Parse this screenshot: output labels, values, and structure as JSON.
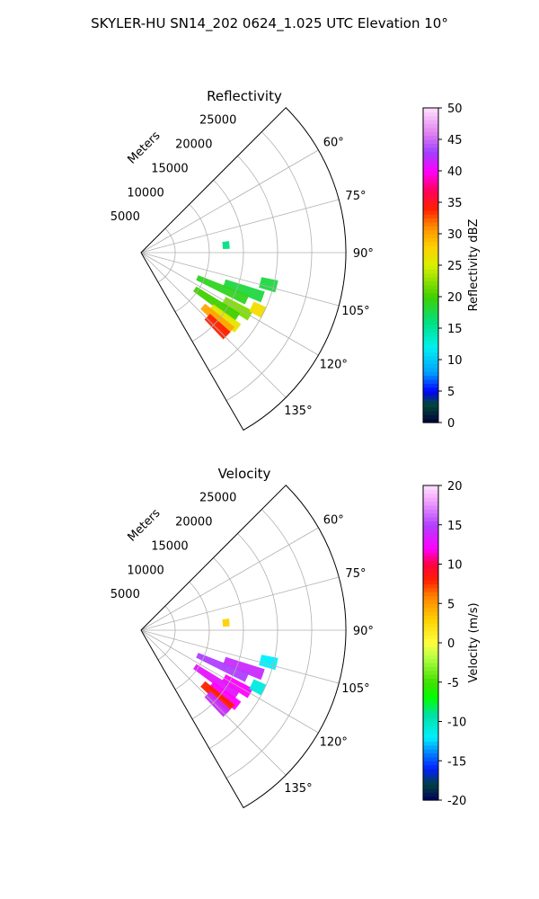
{
  "figure": {
    "suptitle": "SKYLER-HU  SN14_202  0624_1.025 UTC Elevation 10°"
  },
  "chart_data": [
    {
      "type": "polar-sector",
      "title": "Reflectivity",
      "radial_label": "Meters",
      "radial_ticks": [
        "5000",
        "10000",
        "15000",
        "20000",
        "25000"
      ],
      "angle_ticks": [
        "60°",
        "75°",
        "90°",
        "105°",
        "120°",
        "135°"
      ],
      "grid": true,
      "colorbar": {
        "label": "Reflectivity dBZ",
        "min": 0,
        "max": 50,
        "ticks": [
          "0",
          "5",
          "10",
          "15",
          "20",
          "25",
          "30",
          "35",
          "40",
          "45",
          "50"
        ]
      },
      "echo_cells": [
        {
          "az": 110,
          "r_min": 13000,
          "r_max": 19000,
          "value": 18
        },
        {
          "az": 114,
          "r_min": 9000,
          "r_max": 17000,
          "value": 19
        },
        {
          "az": 120,
          "r_min": 14000,
          "r_max": 18500,
          "value": 22
        },
        {
          "az": 124,
          "r_min": 9500,
          "r_max": 17000,
          "value": 20
        },
        {
          "az": 128,
          "r_min": 13000,
          "r_max": 18000,
          "value": 26
        },
        {
          "az": 131,
          "r_min": 12000,
          "r_max": 17500,
          "value": 30
        },
        {
          "az": 134,
          "r_min": 13500,
          "r_max": 17500,
          "value": 34
        },
        {
          "az": 104,
          "r_min": 18000,
          "r_max": 20500,
          "value": 18
        },
        {
          "az": 116,
          "r_min": 18000,
          "r_max": 20000,
          "value": 27
        },
        {
          "az": 85,
          "r_min": 12000,
          "r_max": 13000,
          "value": 16
        }
      ]
    },
    {
      "type": "polar-sector",
      "title": "Velocity",
      "radial_label": "Meters",
      "radial_ticks": [
        "5000",
        "10000",
        "15000",
        "20000",
        "25000"
      ],
      "angle_ticks": [
        "60°",
        "75°",
        "90°",
        "105°",
        "120°",
        "135°"
      ],
      "grid": true,
      "colorbar": {
        "label": "Velocity (m/s)",
        "min": -20,
        "max": 20,
        "ticks": [
          "-20",
          "-15",
          "-10",
          "-5",
          "0",
          "5",
          "10",
          "15",
          "20"
        ]
      },
      "echo_cells": [
        {
          "az": 110,
          "r_min": 13000,
          "r_max": 19000,
          "value": 14
        },
        {
          "az": 114,
          "r_min": 9000,
          "r_max": 17000,
          "value": 15
        },
        {
          "az": 120,
          "r_min": 14000,
          "r_max": 18500,
          "value": 12
        },
        {
          "az": 124,
          "r_min": 9500,
          "r_max": 17000,
          "value": 13
        },
        {
          "az": 128,
          "r_min": 13000,
          "r_max": 18000,
          "value": 12
        },
        {
          "az": 131,
          "r_min": 12000,
          "r_max": 17500,
          "value": 8
        },
        {
          "az": 134,
          "r_min": 13500,
          "r_max": 17500,
          "value": 14
        },
        {
          "az": 104,
          "r_min": 18000,
          "r_max": 20500,
          "value": -12
        },
        {
          "az": 116,
          "r_min": 18000,
          "r_max": 20000,
          "value": -11
        },
        {
          "az": 85,
          "r_min": 12000,
          "r_max": 13000,
          "value": 3
        }
      ]
    }
  ]
}
